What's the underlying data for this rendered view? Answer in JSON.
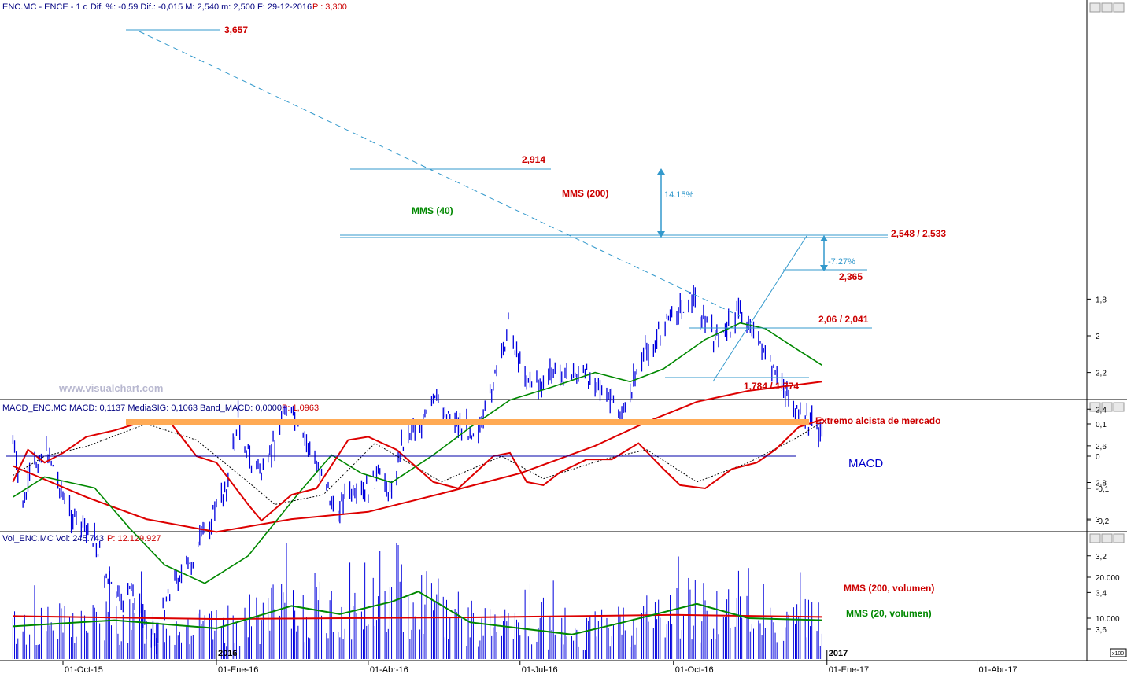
{
  "header": {
    "title": "ENC.MC - ENCE - 1 d Dif. %: -0,59 Dif.: -0,015 M: 2,540 m: 2,500 F: 29-12-2016",
    "last": "P : 3,300"
  },
  "watermark": "www.visualchart.com",
  "colors": {
    "price": "#0000dd",
    "mms200": "#dd0000",
    "mms40": "#008800",
    "annot": "#3399cc",
    "label_red": "#cc0000",
    "orange": "#ffaa55",
    "axis": "#000080"
  },
  "icons": [
    "scroll-up-icon",
    "scroll-down-icon",
    "close-icon"
  ],
  "price_panel": {
    "y_ticks": [
      "3,6",
      "3,4",
      "3,2",
      "3",
      "2,8",
      "2,6",
      "2,4",
      "2,2",
      "2",
      "1,8"
    ],
    "annotations": {
      "high": "3,657",
      "level_2914": "2,914",
      "res": "2,548 / 2,533",
      "sup1": "2,365",
      "sup2": "2,06 / 2,041",
      "low": "1,784 / 1,774",
      "pct_up": "14.15%",
      "pct_down": "-7.27%",
      "mms200_label": "MMS (200)",
      "mms40_label": "MMS (40)"
    }
  },
  "macd_panel": {
    "header_a": "MACD_ENC.MC MACD: 0,1137 MediaSIG: 0,1063 Band_MACD: 0,0000",
    "header_b": "P: 1,0963",
    "y_ticks": [
      "0,1",
      "0",
      "-0,1",
      "-0,2"
    ],
    "extreme_label": "Extremo alcista de mercado",
    "title": "MACD"
  },
  "volume_panel": {
    "header_a": "Vol_ENC.MC Vol: 245.743",
    "header_b": "P: 12.129.927",
    "y_ticks": [
      "20.000",
      "10.000"
    ],
    "scale_note": "x100",
    "mms200_label": "MMS (200, volumen)",
    "mms20_label": "MMS (20, volumen)"
  },
  "x_axis": {
    "labels": [
      "01-Oct-15",
      "01-Ene-16",
      "01-Abr-16",
      "01-Jul-16",
      "01-Oct-16",
      "01-Ene-17",
      "01-Abr-17"
    ],
    "year_marks": [
      "2016",
      "2017"
    ]
  },
  "chart_data": [
    {
      "type": "line",
      "title": "ENC.MC - ENCE - 1 d",
      "x_range": [
        "2015-09-01",
        "2016-12-29"
      ],
      "y_range": [
        1.7,
        3.7
      ],
      "y_ticks": [
        1.8,
        2.0,
        2.2,
        2.4,
        2.6,
        2.8,
        3.0,
        3.2,
        3.4,
        3.6
      ],
      "series": [
        {
          "name": "ENC.MC",
          "points": [
            [
              "2015-09-01",
              2.55
            ],
            [
              "2015-09-06",
              2.95
            ],
            [
              "2015-09-14",
              2.7
            ],
            [
              "2015-09-21",
              2.6
            ],
            [
              "2015-09-30",
              2.85
            ],
            [
              "2015-10-10",
              3.05
            ],
            [
              "2015-10-20",
              3.1
            ],
            [
              "2015-10-28",
              3.35
            ],
            [
              "2015-11-05",
              3.45
            ],
            [
              "2015-11-12",
              3.4
            ],
            [
              "2015-11-19",
              3.55
            ],
            [
              "2015-11-26",
              3.66
            ],
            [
              "2015-12-03",
              3.38
            ],
            [
              "2015-12-10",
              3.3
            ],
            [
              "2015-12-17",
              3.25
            ],
            [
              "2015-12-23",
              3.1
            ],
            [
              "2015-12-31",
              2.95
            ],
            [
              "2016-01-08",
              2.8
            ],
            [
              "2016-01-14",
              2.45
            ],
            [
              "2016-01-22",
              2.7
            ],
            [
              "2016-01-30",
              2.75
            ],
            [
              "2016-02-06",
              2.55
            ],
            [
              "2016-02-11",
              2.35
            ],
            [
              "2016-02-18",
              2.5
            ],
            [
              "2016-02-25",
              2.62
            ],
            [
              "2016-03-05",
              2.75
            ],
            [
              "2016-03-12",
              2.98
            ],
            [
              "2016-03-19",
              2.85
            ],
            [
              "2016-03-26",
              2.9
            ],
            [
              "2016-04-02",
              2.82
            ],
            [
              "2016-04-09",
              2.75
            ],
            [
              "2016-04-14",
              2.86
            ],
            [
              "2016-04-21",
              2.6
            ],
            [
              "2016-04-28",
              2.5
            ],
            [
              "2016-05-05",
              2.45
            ],
            [
              "2016-05-12",
              2.35
            ],
            [
              "2016-05-19",
              2.42
            ],
            [
              "2016-05-26",
              2.48
            ],
            [
              "2016-06-02",
              2.52
            ],
            [
              "2016-06-09",
              2.48
            ],
            [
              "2016-06-15",
              2.25
            ],
            [
              "2016-06-20",
              2.15
            ],
            [
              "2016-06-24",
              1.92
            ],
            [
              "2016-06-30",
              2.12
            ],
            [
              "2016-07-07",
              2.25
            ],
            [
              "2016-07-14",
              2.28
            ],
            [
              "2016-07-21",
              2.2
            ],
            [
              "2016-07-28",
              2.22
            ],
            [
              "2016-08-05",
              2.2
            ],
            [
              "2016-08-12",
              2.22
            ],
            [
              "2016-08-19",
              2.3
            ],
            [
              "2016-08-26",
              2.38
            ],
            [
              "2016-09-01",
              2.42
            ],
            [
              "2016-09-08",
              2.22
            ],
            [
              "2016-09-15",
              2.08
            ],
            [
              "2016-09-22",
              2.0
            ],
            [
              "2016-09-29",
              1.9
            ],
            [
              "2016-10-06",
              1.85
            ],
            [
              "2016-10-13",
              1.79
            ],
            [
              "2016-10-20",
              1.92
            ],
            [
              "2016-10-27",
              2.03
            ],
            [
              "2016-11-03",
              1.95
            ],
            [
              "2016-11-10",
              1.85
            ],
            [
              "2016-11-17",
              1.95
            ],
            [
              "2016-11-24",
              2.08
            ],
            [
              "2016-12-01",
              2.22
            ],
            [
              "2016-12-08",
              2.3
            ],
            [
              "2016-12-15",
              2.45
            ],
            [
              "2016-12-22",
              2.46
            ],
            [
              "2016-12-29",
              2.54
            ]
          ]
        },
        {
          "name": "MMS (200)",
          "points": [
            [
              "2015-09-01",
              2.71
            ],
            [
              "2015-10-15",
              2.88
            ],
            [
              "2015-11-20",
              3.0
            ],
            [
              "2016-01-01",
              3.07
            ],
            [
              "2016-02-15",
              3.0
            ],
            [
              "2016-04-01",
              2.96
            ],
            [
              "2016-05-15",
              2.86
            ],
            [
              "2016-07-01",
              2.75
            ],
            [
              "2016-08-15",
              2.6
            ],
            [
              "2016-09-15",
              2.47
            ],
            [
              "2016-10-15",
              2.36
            ],
            [
              "2016-11-15",
              2.3
            ],
            [
              "2016-12-29",
              2.25
            ]
          ]
        },
        {
          "name": "MMS (40)",
          "points": [
            [
              "2015-09-01",
              2.88
            ],
            [
              "2015-09-20",
              2.77
            ],
            [
              "2015-10-20",
              2.83
            ],
            [
              "2015-11-10",
              3.05
            ],
            [
              "2015-12-01",
              3.25
            ],
            [
              "2015-12-25",
              3.35
            ],
            [
              "2016-01-20",
              3.2
            ],
            [
              "2016-02-20",
              2.85
            ],
            [
              "2016-03-10",
              2.65
            ],
            [
              "2016-03-28",
              2.75
            ],
            [
              "2016-04-15",
              2.8
            ],
            [
              "2016-05-10",
              2.65
            ],
            [
              "2016-06-01",
              2.5
            ],
            [
              "2016-06-25",
              2.35
            ],
            [
              "2016-07-20",
              2.28
            ],
            [
              "2016-08-15",
              2.2
            ],
            [
              "2016-09-05",
              2.25
            ],
            [
              "2016-09-25",
              2.18
            ],
            [
              "2016-10-20",
              2.02
            ],
            [
              "2016-11-10",
              1.93
            ],
            [
              "2016-11-25",
              1.96
            ],
            [
              "2016-12-10",
              2.05
            ],
            [
              "2016-12-29",
              2.16
            ]
          ]
        }
      ]
    },
    {
      "type": "line",
      "title": "MACD_ENC.MC",
      "y_range": [
        -0.22,
        0.12
      ],
      "series": [
        {
          "name": "MACD",
          "points": [
            [
              "2015-09-01",
              -0.08
            ],
            [
              "2015-09-10",
              0.02
            ],
            [
              "2015-09-20",
              -0.02
            ],
            [
              "2015-10-01",
              0.01
            ],
            [
              "2015-10-15",
              0.06
            ],
            [
              "2015-11-01",
              0.08
            ],
            [
              "2015-11-20",
              0.11
            ],
            [
              "2015-12-05",
              0.1
            ],
            [
              "2015-12-20",
              0.0
            ],
            [
              "2016-01-01",
              -0.02
            ],
            [
              "2016-01-20",
              -0.15
            ],
            [
              "2016-01-28",
              -0.2
            ],
            [
              "2016-02-15",
              -0.12
            ],
            [
              "2016-03-01",
              -0.1
            ],
            [
              "2016-03-20",
              0.05
            ],
            [
              "2016-04-01",
              0.06
            ],
            [
              "2016-04-18",
              0.02
            ],
            [
              "2016-05-10",
              -0.08
            ],
            [
              "2016-05-25",
              -0.1
            ],
            [
              "2016-06-15",
              0.0
            ],
            [
              "2016-06-25",
              0.01
            ],
            [
              "2016-07-05",
              -0.08
            ],
            [
              "2016-07-15",
              -0.09
            ],
            [
              "2016-07-25",
              -0.05
            ],
            [
              "2016-08-10",
              -0.01
            ],
            [
              "2016-08-25",
              -0.01
            ],
            [
              "2016-09-10",
              0.04
            ],
            [
              "2016-09-25",
              -0.04
            ],
            [
              "2016-10-05",
              -0.09
            ],
            [
              "2016-10-20",
              -0.1
            ],
            [
              "2016-11-05",
              -0.04
            ],
            [
              "2016-11-20",
              -0.02
            ],
            [
              "2016-12-01",
              0.02
            ],
            [
              "2016-12-15",
              0.09
            ],
            [
              "2016-12-29",
              0.114
            ]
          ]
        },
        {
          "name": "MediaSIG",
          "points": [
            [
              "2015-09-01",
              -0.06
            ],
            [
              "2015-09-20",
              0.0
            ],
            [
              "2015-10-15",
              0.03
            ],
            [
              "2015-11-20",
              0.1
            ],
            [
              "2015-12-20",
              0.05
            ],
            [
              "2016-01-20",
              -0.08
            ],
            [
              "2016-02-05",
              -0.15
            ],
            [
              "2016-03-05",
              -0.12
            ],
            [
              "2016-04-05",
              0.04
            ],
            [
              "2016-05-15",
              -0.08
            ],
            [
              "2016-06-20",
              0.0
            ],
            [
              "2016-07-15",
              -0.07
            ],
            [
              "2016-08-20",
              -0.01
            ],
            [
              "2016-09-15",
              0.02
            ],
            [
              "2016-10-15",
              -0.08
            ],
            [
              "2016-11-15",
              -0.02
            ],
            [
              "2016-12-15",
              0.06
            ],
            [
              "2016-12-29",
              0.106
            ]
          ]
        }
      ]
    },
    {
      "type": "bar",
      "title": "Vol_ENC.MC",
      "y_range": [
        0,
        28000
      ],
      "series": [
        {
          "name": "Vol",
          "values": "daily volume bars (x100)"
        },
        {
          "name": "MMS (200, volumen)",
          "points": [
            [
              "2015-09-01",
              10500
            ],
            [
              "2016-01-01",
              9800
            ],
            [
              "2016-06-01",
              10200
            ],
            [
              "2016-10-01",
              10800
            ],
            [
              "2016-12-29",
              10300
            ]
          ]
        },
        {
          "name": "MMS (20, volumen)",
          "points": [
            [
              "2015-09-01",
              8000
            ],
            [
              "2015-11-01",
              9500
            ],
            [
              "2016-01-01",
              7500
            ],
            [
              "2016-02-15",
              13000
            ],
            [
              "2016-03-15",
              11000
            ],
            [
              "2016-04-15",
              14000
            ],
            [
              "2016-05-01",
              16500
            ],
            [
              "2016-06-01",
              9000
            ],
            [
              "2016-08-01",
              6000
            ],
            [
              "2016-09-01",
              9000
            ],
            [
              "2016-10-15",
              13500
            ],
            [
              "2016-11-15",
              10000
            ],
            [
              "2016-12-29",
              9500
            ]
          ]
        }
      ]
    }
  ]
}
